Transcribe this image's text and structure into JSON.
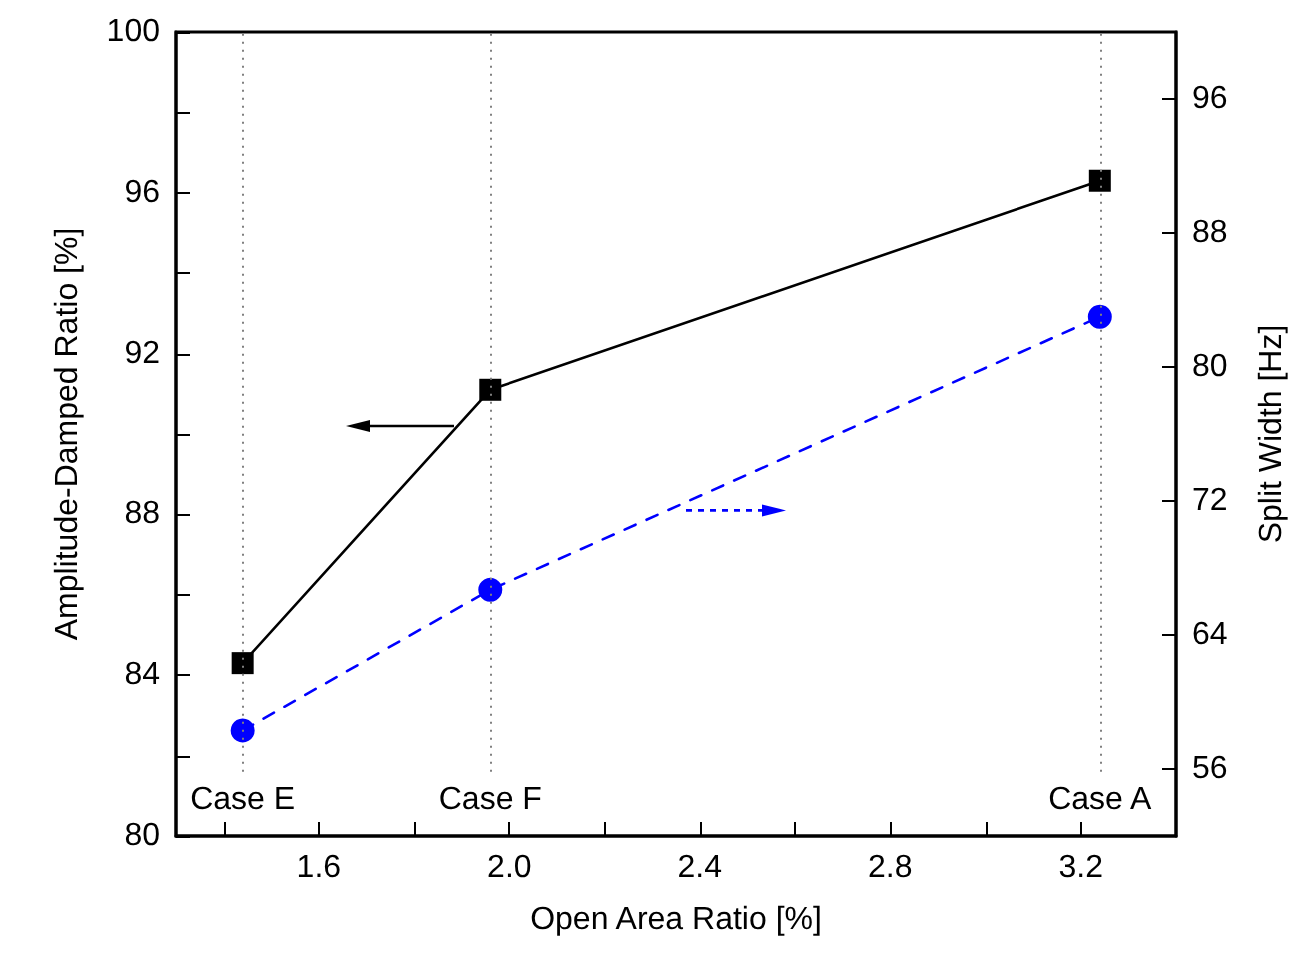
{
  "chart_data": {
    "type": "line",
    "xlabel": "Open Area Ratio [%]",
    "ylabel": "Amplitude-Damped Ratio [%]",
    "y2label": "Split Width [Hz]",
    "xlim": [
      1.3,
      3.4
    ],
    "xticks": [
      {
        "value": 1.4,
        "label": null
      },
      1.6,
      {
        "value": 1.8,
        "label": null
      },
      {
        "value": 2,
        "label": "2.0"
      },
      {
        "value": 2.2,
        "label": null
      },
      2.4,
      {
        "value": 2.6,
        "label": null
      },
      2.8,
      {
        "value": 3,
        "label": null
      },
      3.2
    ],
    "ylim": [
      80,
      100
    ],
    "yticks": [
      80,
      {
        "value": 82,
        "label": null
      },
      84,
      {
        "value": 86,
        "label": null
      },
      88,
      {
        "value": 90,
        "label": null
      },
      92,
      {
        "value": 94,
        "label": null
      },
      96,
      {
        "value": 98,
        "label": null
      },
      100
    ],
    "y2lim": [
      52,
      100
    ],
    "y2ticks": [
      56,
      64,
      72,
      80,
      88,
      96
    ],
    "x": [
      1.44,
      1.96,
      3.24
    ],
    "series": [
      {
        "color": "#000000",
        "values": [
          84.3,
          91.1,
          96.3
        ],
        "marker": "square",
        "line_style": "solid"
      },
      {
        "color": "#0000ff",
        "values": [
          58.3,
          66.7,
          83.0
        ],
        "marker": "circle",
        "line_style": "dashed",
        "axis": "y2"
      }
    ],
    "ref_lines": [
      {
        "axis": "x",
        "value": 1.44,
        "label": "Case E",
        "color": "#808080",
        "line_style": "dotted"
      },
      {
        "axis": "x",
        "value": 1.96,
        "label": "Case F",
        "color": "#808080",
        "line_style": "dotted"
      },
      {
        "axis": "x",
        "value": 3.24,
        "label": "Case A",
        "color": "#808080",
        "line_style": "dotted"
      }
    ]
  }
}
